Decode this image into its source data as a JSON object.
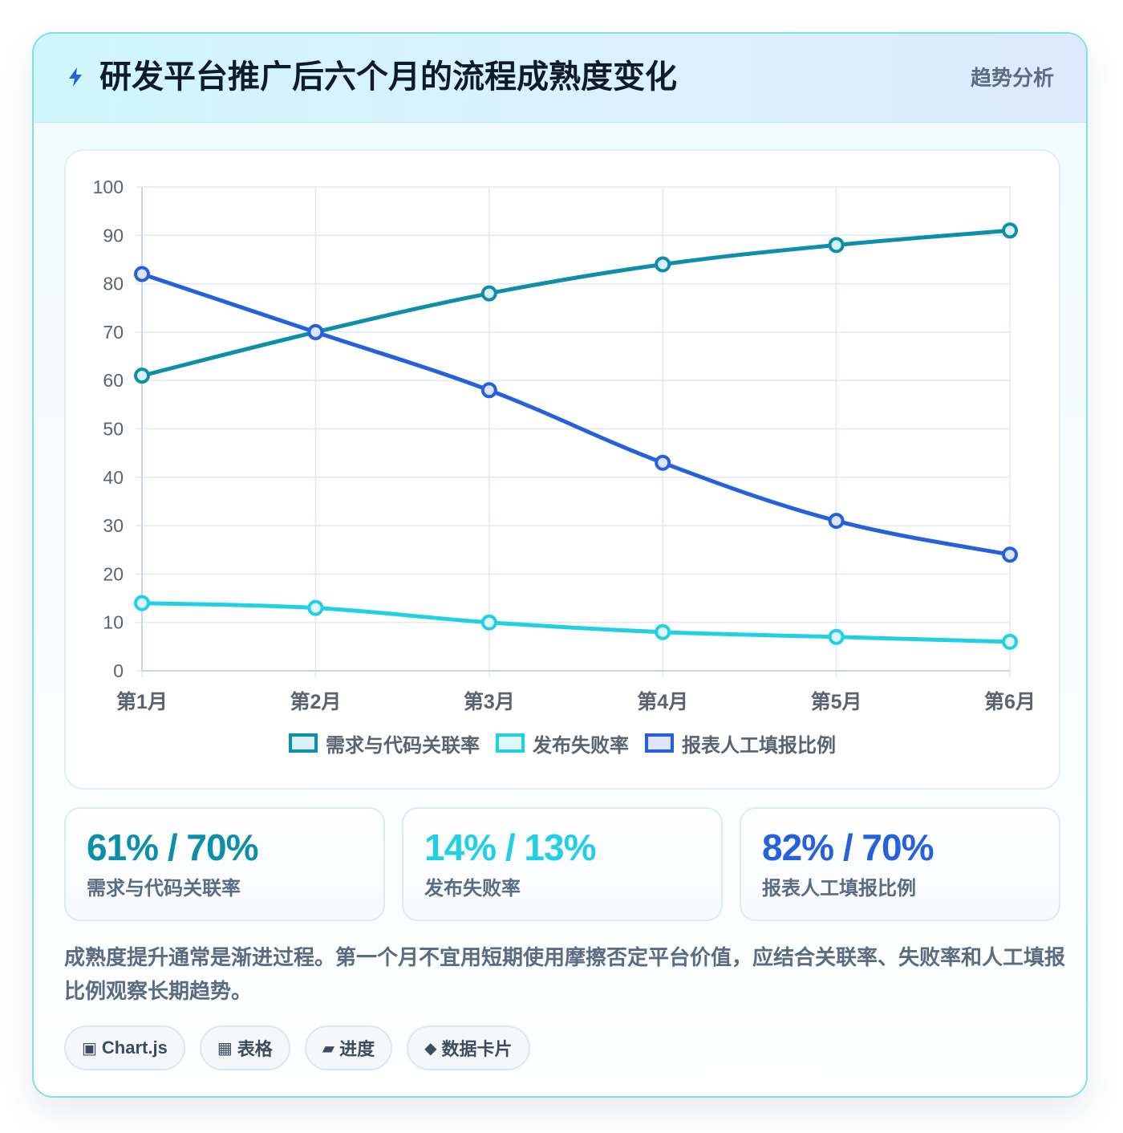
{
  "header": {
    "title": "研发平台推广后六个月的流程成熟度变化",
    "tag": "趋势分析"
  },
  "colors": {
    "series1": "#0e8fa8",
    "series2": "#22d0e6",
    "series3": "#2660dd",
    "grid": "#e2e8f0",
    "tick": "#5b6270"
  },
  "chart_data": {
    "type": "line",
    "categories": [
      "第1月",
      "第2月",
      "第3月",
      "第4月",
      "第5月",
      "第6月"
    ],
    "ylim": [
      0,
      100
    ],
    "yticks": [
      0,
      10,
      20,
      30,
      40,
      50,
      60,
      70,
      80,
      90,
      100
    ],
    "grid": true,
    "legend_position": "bottom",
    "series": [
      {
        "name": "需求与代码关联率",
        "color": "#0e8fa8",
        "fill": "#d9f1f6",
        "values": [
          61,
          70,
          78,
          84,
          88,
          91
        ]
      },
      {
        "name": "发布失败率",
        "color": "#22d0e6",
        "fill": "#dcf8fc",
        "values": [
          14,
          13,
          10,
          8,
          7,
          6
        ]
      },
      {
        "name": "报表人工填报比例",
        "color": "#2660dd",
        "fill": "#dce5fb",
        "values": [
          82,
          70,
          58,
          43,
          31,
          24
        ]
      }
    ]
  },
  "stats": [
    {
      "value": "61% / 70%",
      "label": "需求与代码关联率",
      "color": "#0e8fa8"
    },
    {
      "value": "14% / 13%",
      "label": "发布失败率",
      "color": "#22d0e6"
    },
    {
      "value": "82% / 70%",
      "label": "报表人工填报比例",
      "color": "#2660dd"
    }
  ],
  "note": "成熟度提升通常是渐进过程。第一个月不宜用短期使用摩擦否定平台价值，应结合关联率、失败率和人工填报比例观察长期趋势。",
  "pills": [
    {
      "icon": "▣",
      "label": "Chart.js",
      "icon_name": "chart-icon"
    },
    {
      "icon": "▦",
      "label": "表格",
      "icon_name": "table-icon"
    },
    {
      "icon": "▰",
      "label": "进度",
      "icon_name": "progress-icon"
    },
    {
      "icon": "◆",
      "label": "数据卡片",
      "icon_name": "diamond-icon"
    }
  ]
}
